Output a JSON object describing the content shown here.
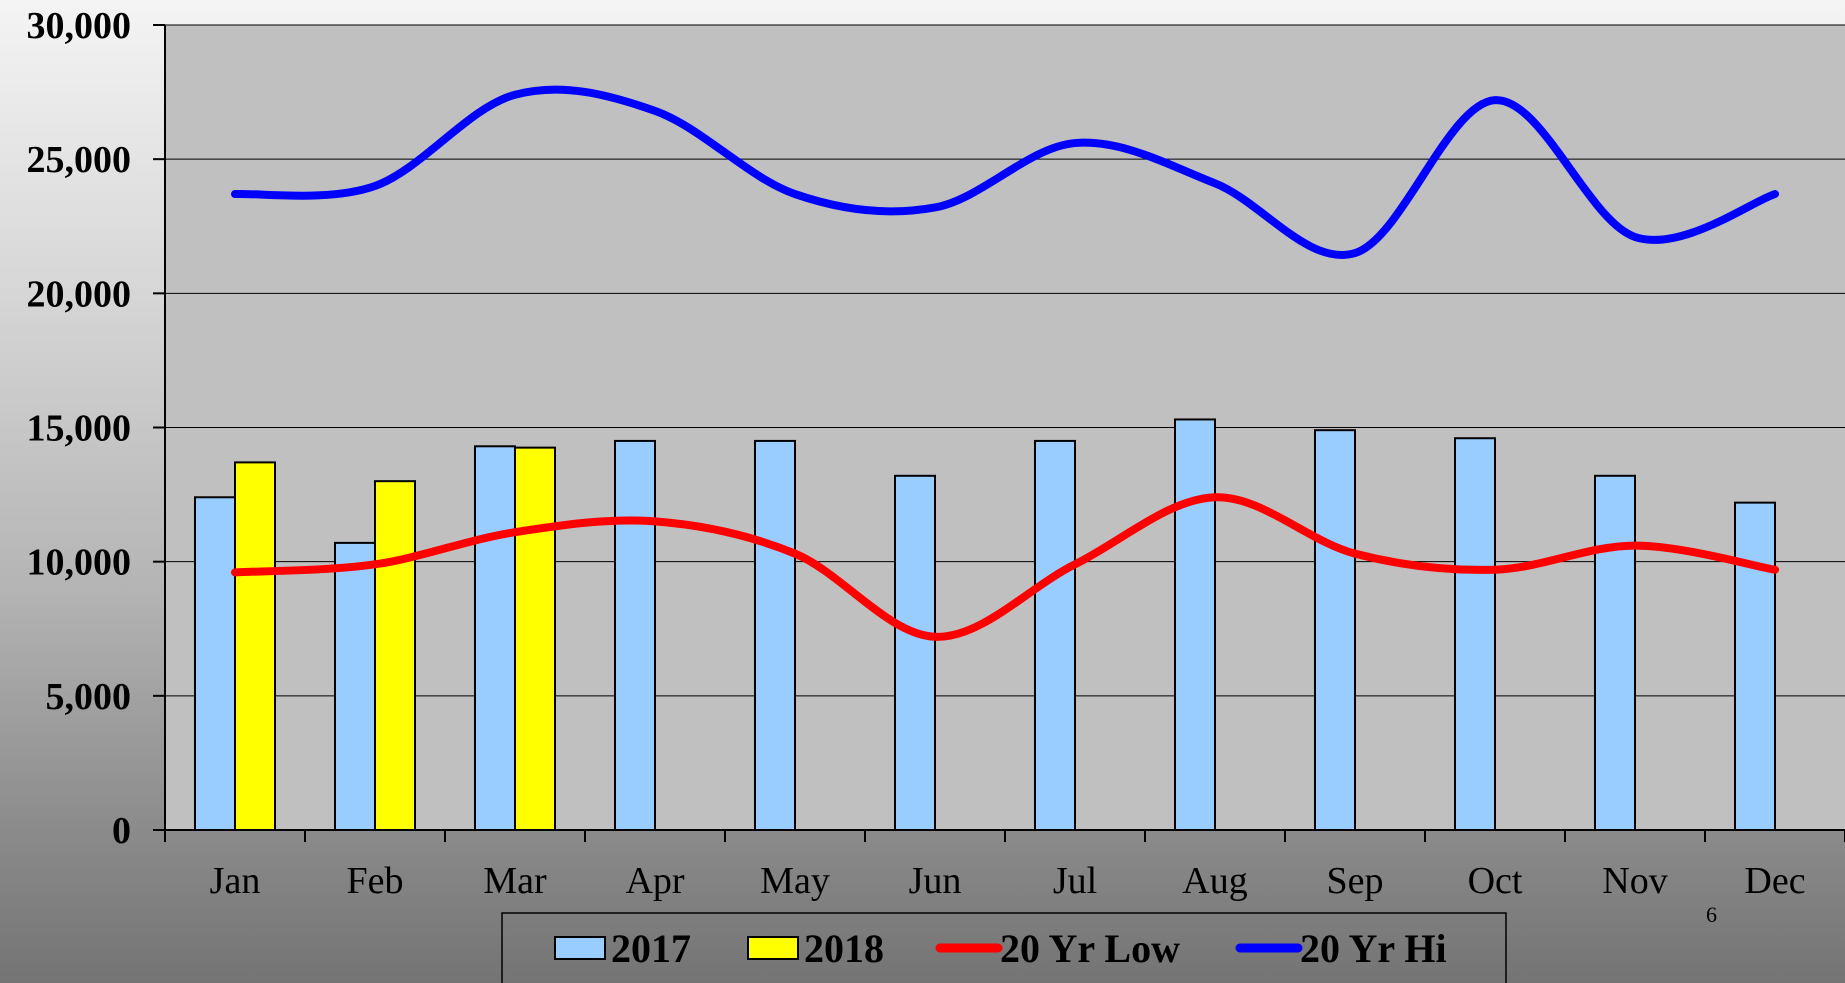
{
  "chart_data": {
    "type": "bar",
    "categories": [
      "Jan",
      "Feb",
      "Mar",
      "Apr",
      "May",
      "Jun",
      "Jul",
      "Aug",
      "Sep",
      "Oct",
      "Nov",
      "Dec"
    ],
    "series": [
      {
        "name": "2017",
        "kind": "bar",
        "color": "#99ccff",
        "values": [
          12400,
          10700,
          14300,
          14500,
          14500,
          13200,
          14500,
          15300,
          14900,
          14600,
          13200,
          12200
        ]
      },
      {
        "name": "2018",
        "kind": "bar",
        "color": "#ffff00",
        "values": [
          13700,
          13000,
          14250,
          null,
          null,
          null,
          null,
          null,
          null,
          null,
          null,
          null
        ]
      },
      {
        "name": "20 Yr Low",
        "kind": "line",
        "color": "#ff0000",
        "values": [
          9600,
          9900,
          11100,
          11500,
          10300,
          7200,
          9900,
          12400,
          10300,
          9700,
          10600,
          9700
        ]
      },
      {
        "name": "20 Yr Hi",
        "kind": "line",
        "color": "#0000ff",
        "values": [
          23700,
          24000,
          27400,
          26800,
          23700,
          23200,
          25600,
          24100,
          21500,
          27200,
          22100,
          23700
        ]
      }
    ],
    "ylim": [
      0,
      30000
    ],
    "yticks": [
      "0",
      "5,000",
      "10,000",
      "15,000",
      "20,000",
      "25,000",
      "30,000"
    ],
    "grid": true,
    "legend_position": "bottom-center",
    "title": "",
    "xlabel": "",
    "ylabel": ""
  },
  "page_number": "6"
}
